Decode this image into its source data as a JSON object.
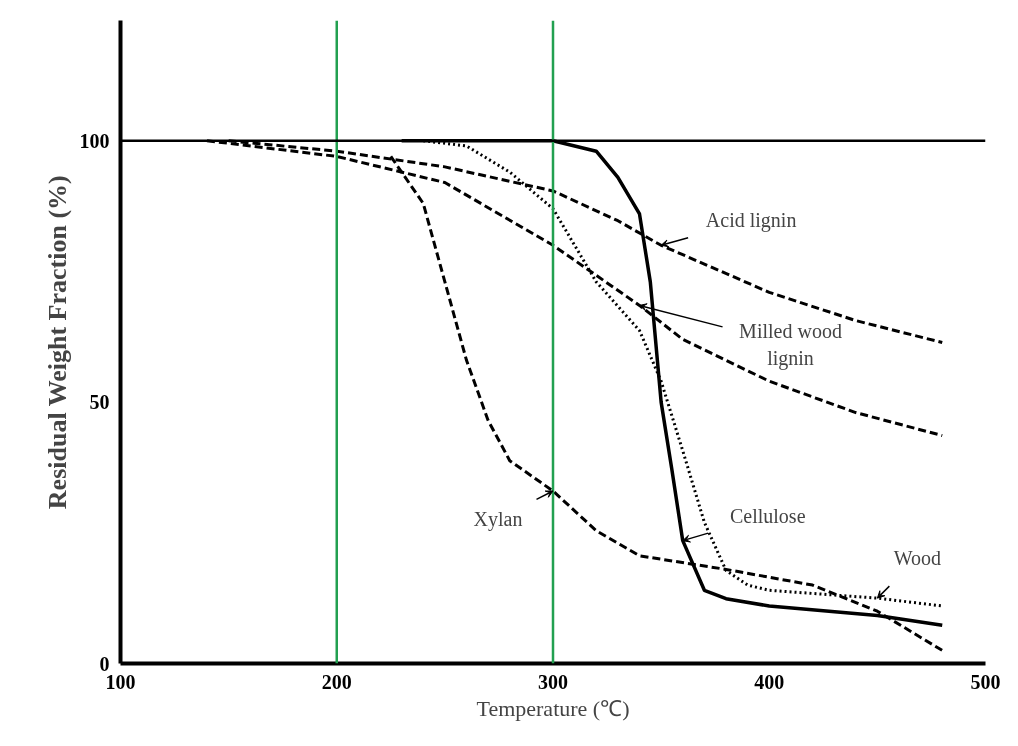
{
  "chart_data": {
    "type": "line",
    "xlabel": "Temperature (℃)",
    "ylabel": "Residual Weight Fraction (%)",
    "xlim": [
      100,
      500
    ],
    "ylim": [
      0,
      123
    ],
    "xticks": [
      100,
      200,
      300,
      400,
      500
    ],
    "yticks": [
      0,
      50,
      100
    ],
    "grid": false,
    "marker": "none",
    "series": [
      {
        "name": "Cellulose",
        "color": "#000000",
        "line_style": "solid",
        "x": [
          230,
          260,
          300,
          320,
          330,
          340,
          345,
          350,
          355,
          360,
          370,
          380,
          400,
          450,
          480
        ],
        "values": [
          100,
          100,
          100,
          98,
          93,
          86,
          73,
          50,
          37,
          23.5,
          14,
          12.4,
          11,
          9.2,
          7.3
        ]
      },
      {
        "name": "Xylan",
        "color": "#000000",
        "line_style": "dashed",
        "x": [
          225,
          240,
          250,
          260,
          270,
          280,
          300,
          320,
          340,
          380,
          420,
          450,
          480
        ],
        "values": [
          97,
          88,
          73,
          58,
          46.5,
          38.8,
          33,
          25.4,
          20.6,
          18,
          15,
          10,
          2.5
        ]
      },
      {
        "name": "Wood",
        "color": "#000000",
        "line_style": "dotted",
        "x": [
          240,
          260,
          280,
          300,
          320,
          340,
          350,
          360,
          370,
          380,
          390,
          400,
          450,
          480
        ],
        "values": [
          100,
          99,
          94,
          87,
          73,
          63.7,
          54,
          40.7,
          27,
          17.8,
          15,
          14,
          12.5,
          11
        ]
      },
      {
        "name": "Acid lignin",
        "color": "#000000",
        "line_style": "dashed",
        "x": [
          150,
          200,
          250,
          300,
          330,
          350,
          400,
          440,
          480
        ],
        "values": [
          100,
          98,
          95,
          90.4,
          84.7,
          80,
          71,
          65.6,
          61.4
        ]
      },
      {
        "name": "Milled wood\nlignin",
        "color": "#000000",
        "line_style": "dashed",
        "x": [
          140,
          200,
          250,
          300,
          340,
          360,
          400,
          440,
          480
        ],
        "values": [
          100,
          97,
          92,
          80,
          68.5,
          62,
          54,
          48,
          43.6
        ]
      }
    ],
    "ref_lines": [
      {
        "axis": "x",
        "value": 200,
        "color": "#22a050"
      },
      {
        "axis": "x",
        "value": 300,
        "color": "#22a050"
      },
      {
        "axis": "y",
        "value": 100,
        "color": "#000000"
      }
    ]
  }
}
